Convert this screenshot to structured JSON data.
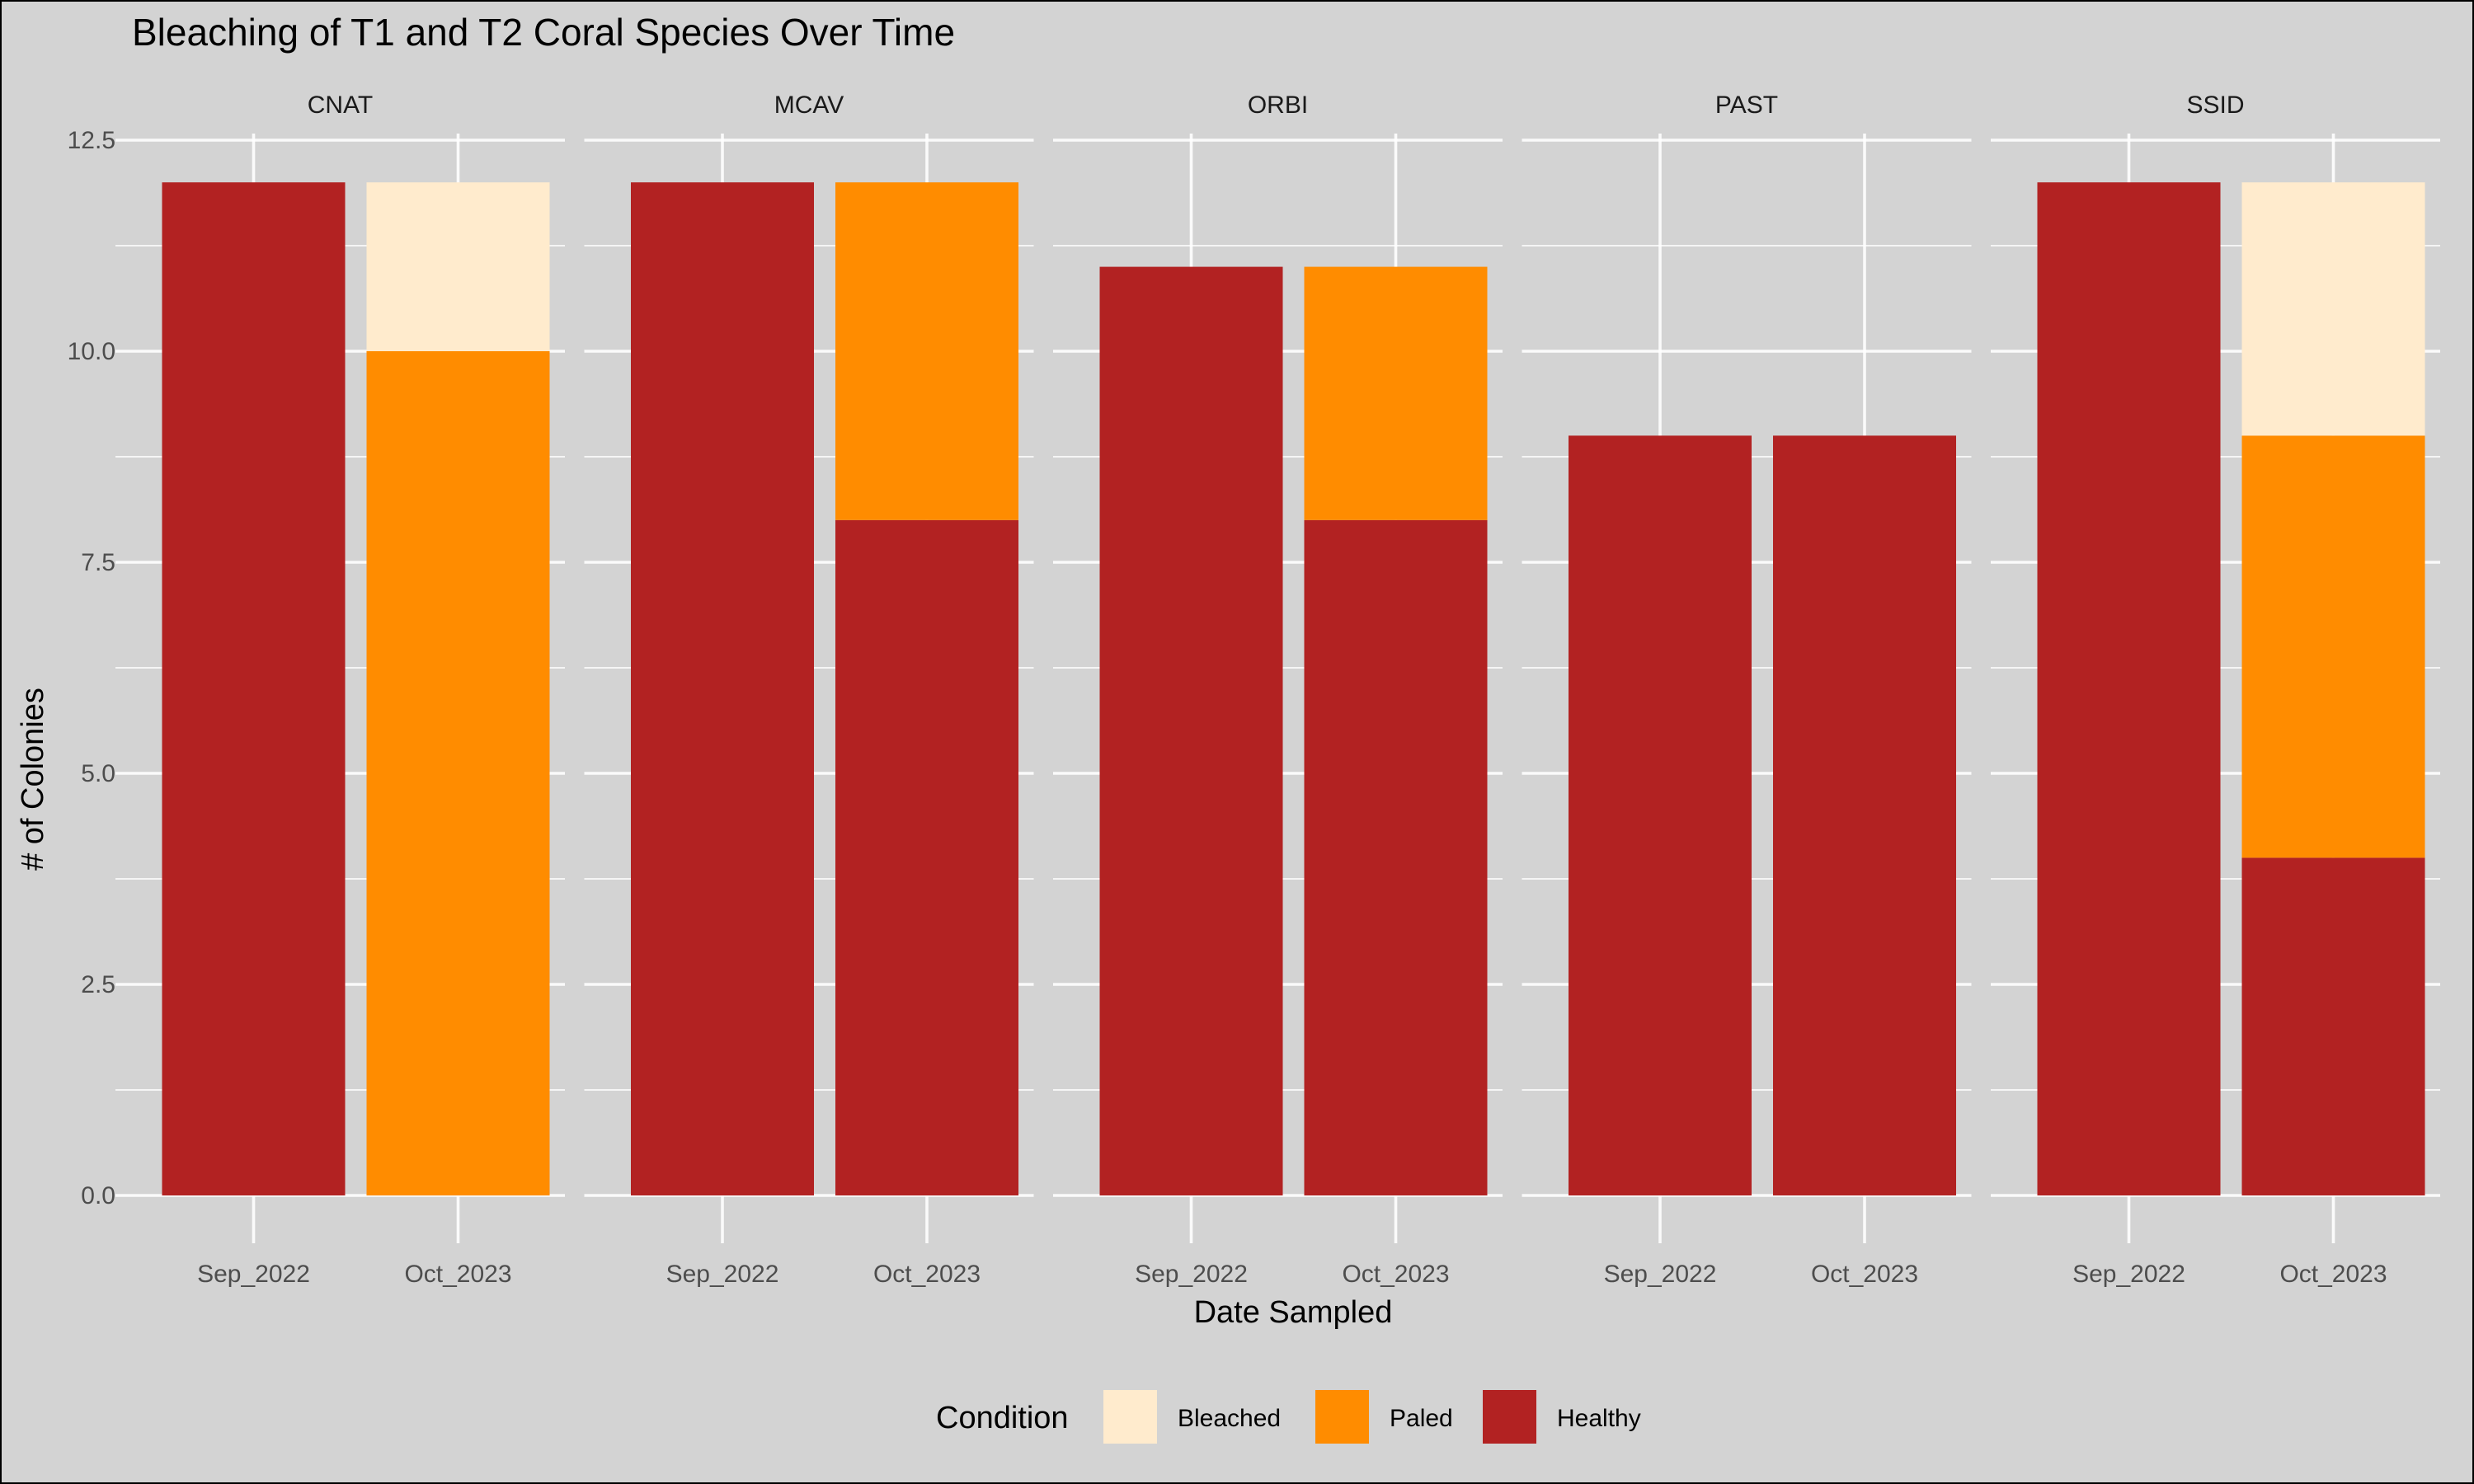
{
  "chart_data": {
    "type": "bar",
    "stacked": true,
    "title": "Bleaching of T1 and T2 Coral Species Over Time",
    "xlabel": "Date Sampled",
    "ylabel": "# of Colonies",
    "ylim": [
      0,
      12.5
    ],
    "y_ticks": [
      "0.0",
      "2.5",
      "5.0",
      "7.5",
      "10.0",
      "12.5"
    ],
    "y_tick_values": [
      0,
      2.5,
      5,
      7.5,
      10,
      12.5
    ],
    "grid": true,
    "categories": [
      "Sep_2022",
      "Oct_2023"
    ],
    "legend": {
      "title": "Condition",
      "placement": "bottom",
      "entries": [
        {
          "name": "Bleached",
          "color": "#ffebcd"
        },
        {
          "name": "Paled",
          "color": "#ff8c00"
        },
        {
          "name": "Healthy",
          "color": "#b22222"
        }
      ]
    },
    "stack_order_bottom_to_top": [
      "Healthy",
      "Paled",
      "Bleached"
    ],
    "panels": [
      {
        "label": "CNAT",
        "series": {
          "Healthy": [
            12,
            0
          ],
          "Paled": [
            0,
            10
          ],
          "Bleached": [
            0,
            2
          ]
        }
      },
      {
        "label": "MCAV",
        "series": {
          "Healthy": [
            12,
            8
          ],
          "Paled": [
            0,
            4
          ],
          "Bleached": [
            0,
            0
          ]
        }
      },
      {
        "label": "ORBI",
        "series": {
          "Healthy": [
            11,
            8
          ],
          "Paled": [
            0,
            3
          ],
          "Bleached": [
            0,
            0
          ]
        }
      },
      {
        "label": "PAST",
        "series": {
          "Healthy": [
            9,
            9
          ],
          "Paled": [
            0,
            0
          ],
          "Bleached": [
            0,
            0
          ]
        }
      },
      {
        "label": "SSID",
        "series": {
          "Healthy": [
            12,
            4
          ],
          "Paled": [
            0,
            5
          ],
          "Bleached": [
            0,
            3
          ]
        }
      }
    ]
  }
}
